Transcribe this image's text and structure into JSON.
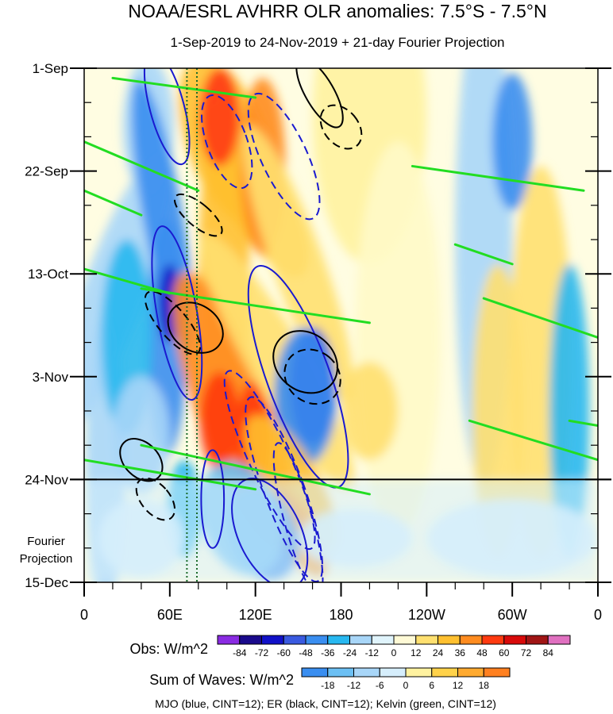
{
  "chart_data": {
    "type": "heatmap",
    "title": "NOAA/ESRL AVHRR OLR anomalies: 7.5°S - 7.5°N",
    "subtitle": "1-Sep-2019 to 24-Nov-2019 + 21-day Fourier Projection",
    "x_ticks": [
      "0",
      "60E",
      "120E",
      "180",
      "120W",
      "60W",
      "0"
    ],
    "x_tick_lon": [
      0,
      60,
      120,
      180,
      240,
      300,
      360
    ],
    "xlim": [
      0,
      360
    ],
    "y_ticks": [
      "1-Sep",
      "22-Sep",
      "13-Oct",
      "3-Nov",
      "24-Nov",
      "15-Dec"
    ],
    "y_tick_day": [
      0,
      21,
      42,
      63,
      84,
      105
    ],
    "ylim": [
      0,
      105
    ],
    "projection_start_day": 84,
    "projection_label": [
      "Fourier",
      "Projection"
    ],
    "vertical_reference_lon": [
      72,
      79
    ],
    "obs_colorbar": {
      "label": "Obs: W/m^2",
      "levels": [
        "-84",
        "-72",
        "-60",
        "-48",
        "-36",
        "-24",
        "-12",
        "0",
        "12",
        "24",
        "36",
        "48",
        "60",
        "72",
        "84"
      ],
      "colors": [
        "#8a2be2",
        "#1a0a8c",
        "#1111c8",
        "#3a5ae0",
        "#3a8ef0",
        "#28b8f0",
        "#a8d6f8",
        "#e0f4fc",
        "#fffad6",
        "#ffe070",
        "#ffc030",
        "#ff8c20",
        "#ff3a10",
        "#d80a0a",
        "#a01515",
        "#e070c0"
      ]
    },
    "waves_colorbar": {
      "label": "Sum of Waves: W/m^2",
      "levels": [
        "-18",
        "-12",
        "-6",
        "0",
        "6",
        "12",
        "18"
      ],
      "colors": [
        "#3a8ef0",
        "#6cc0f4",
        "#a8d6f8",
        "#d6eefc",
        "#fff2a0",
        "#ffd24a",
        "#ffaa30",
        "#ff8020"
      ]
    },
    "footer": "MJO (blue, CINT=12); ER (black, CINT=12); Kelvin (green, CINT=12)",
    "series": [
      {
        "name": "MJO (blue, CINT=12)",
        "color": "#1a1ad0"
      },
      {
        "name": "ER (black, CINT=12)",
        "color": "#000000"
      },
      {
        "name": "Kelvin (green, CINT=12)",
        "color": "#22dd22"
      }
    ],
    "grid": false
  }
}
